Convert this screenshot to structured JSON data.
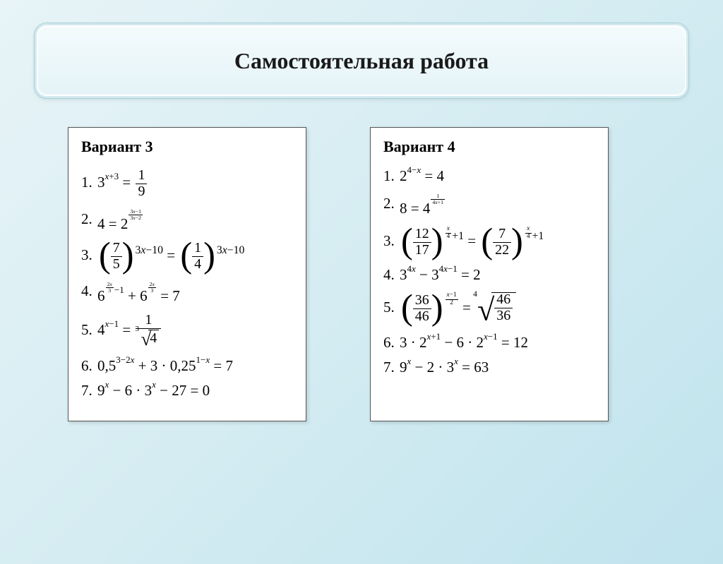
{
  "colors": {
    "bg_gradient_start": "#e8f4f7",
    "bg_gradient_end": "#c0e3ed",
    "title_bg_top": "#f4fbfd",
    "title_bg_bottom": "#e4f3f7",
    "title_border": "#a6cfd8",
    "panel_bg": "#ffffff",
    "panel_border": "#555555",
    "text": "#000000"
  },
  "typography": {
    "title_fontsize": 32,
    "variant_fontsize": 22,
    "equation_fontsize": 21,
    "font_family": "Times New Roman"
  },
  "title": "Самостоятельная работа",
  "variants": {
    "left": {
      "heading": "Вариант 3",
      "equations": [
        {
          "n": "1.",
          "latex": "3^{x+3} = 1/9"
        },
        {
          "n": "2.",
          "latex": "4 = 2^{(3x-1)/(3x-2)}"
        },
        {
          "n": "3.",
          "latex": "(7/5)^{3x-10} = (1/4)^{3x-10}"
        },
        {
          "n": "4.",
          "latex": "6^{(2x/3)-1} + 6^{2x/3} = 7"
        },
        {
          "n": "5.",
          "latex": "4^{x-1} = 1 / cuberoot(4)"
        },
        {
          "n": "6.",
          "latex": "0.5^{3-2x} + 3·0.25^{1-x} = 7"
        },
        {
          "n": "7.",
          "latex": "9^{x} - 6·3^{x} - 27 = 0"
        }
      ]
    },
    "right": {
      "heading": "Вариант 4",
      "equations": [
        {
          "n": "1.",
          "latex": "2^{4-x} = 4"
        },
        {
          "n": "2.",
          "latex": "8 = 4^{1/(4x+1)}"
        },
        {
          "n": "3.",
          "latex": "(12/17)^{x/4+1} = (7/22)^{x/4+1}"
        },
        {
          "n": "4.",
          "latex": "3^{4x} - 3^{4x-1} = 2"
        },
        {
          "n": "5.",
          "latex": "(36/46)^{(x-1)/2} = 4thRoot(46/36)"
        },
        {
          "n": "6.",
          "latex": "3·2^{x+1} - 6·2^{x-1} = 12"
        },
        {
          "n": "7.",
          "latex": "9^{x} - 2·3^{x} = 63"
        }
      ]
    }
  }
}
